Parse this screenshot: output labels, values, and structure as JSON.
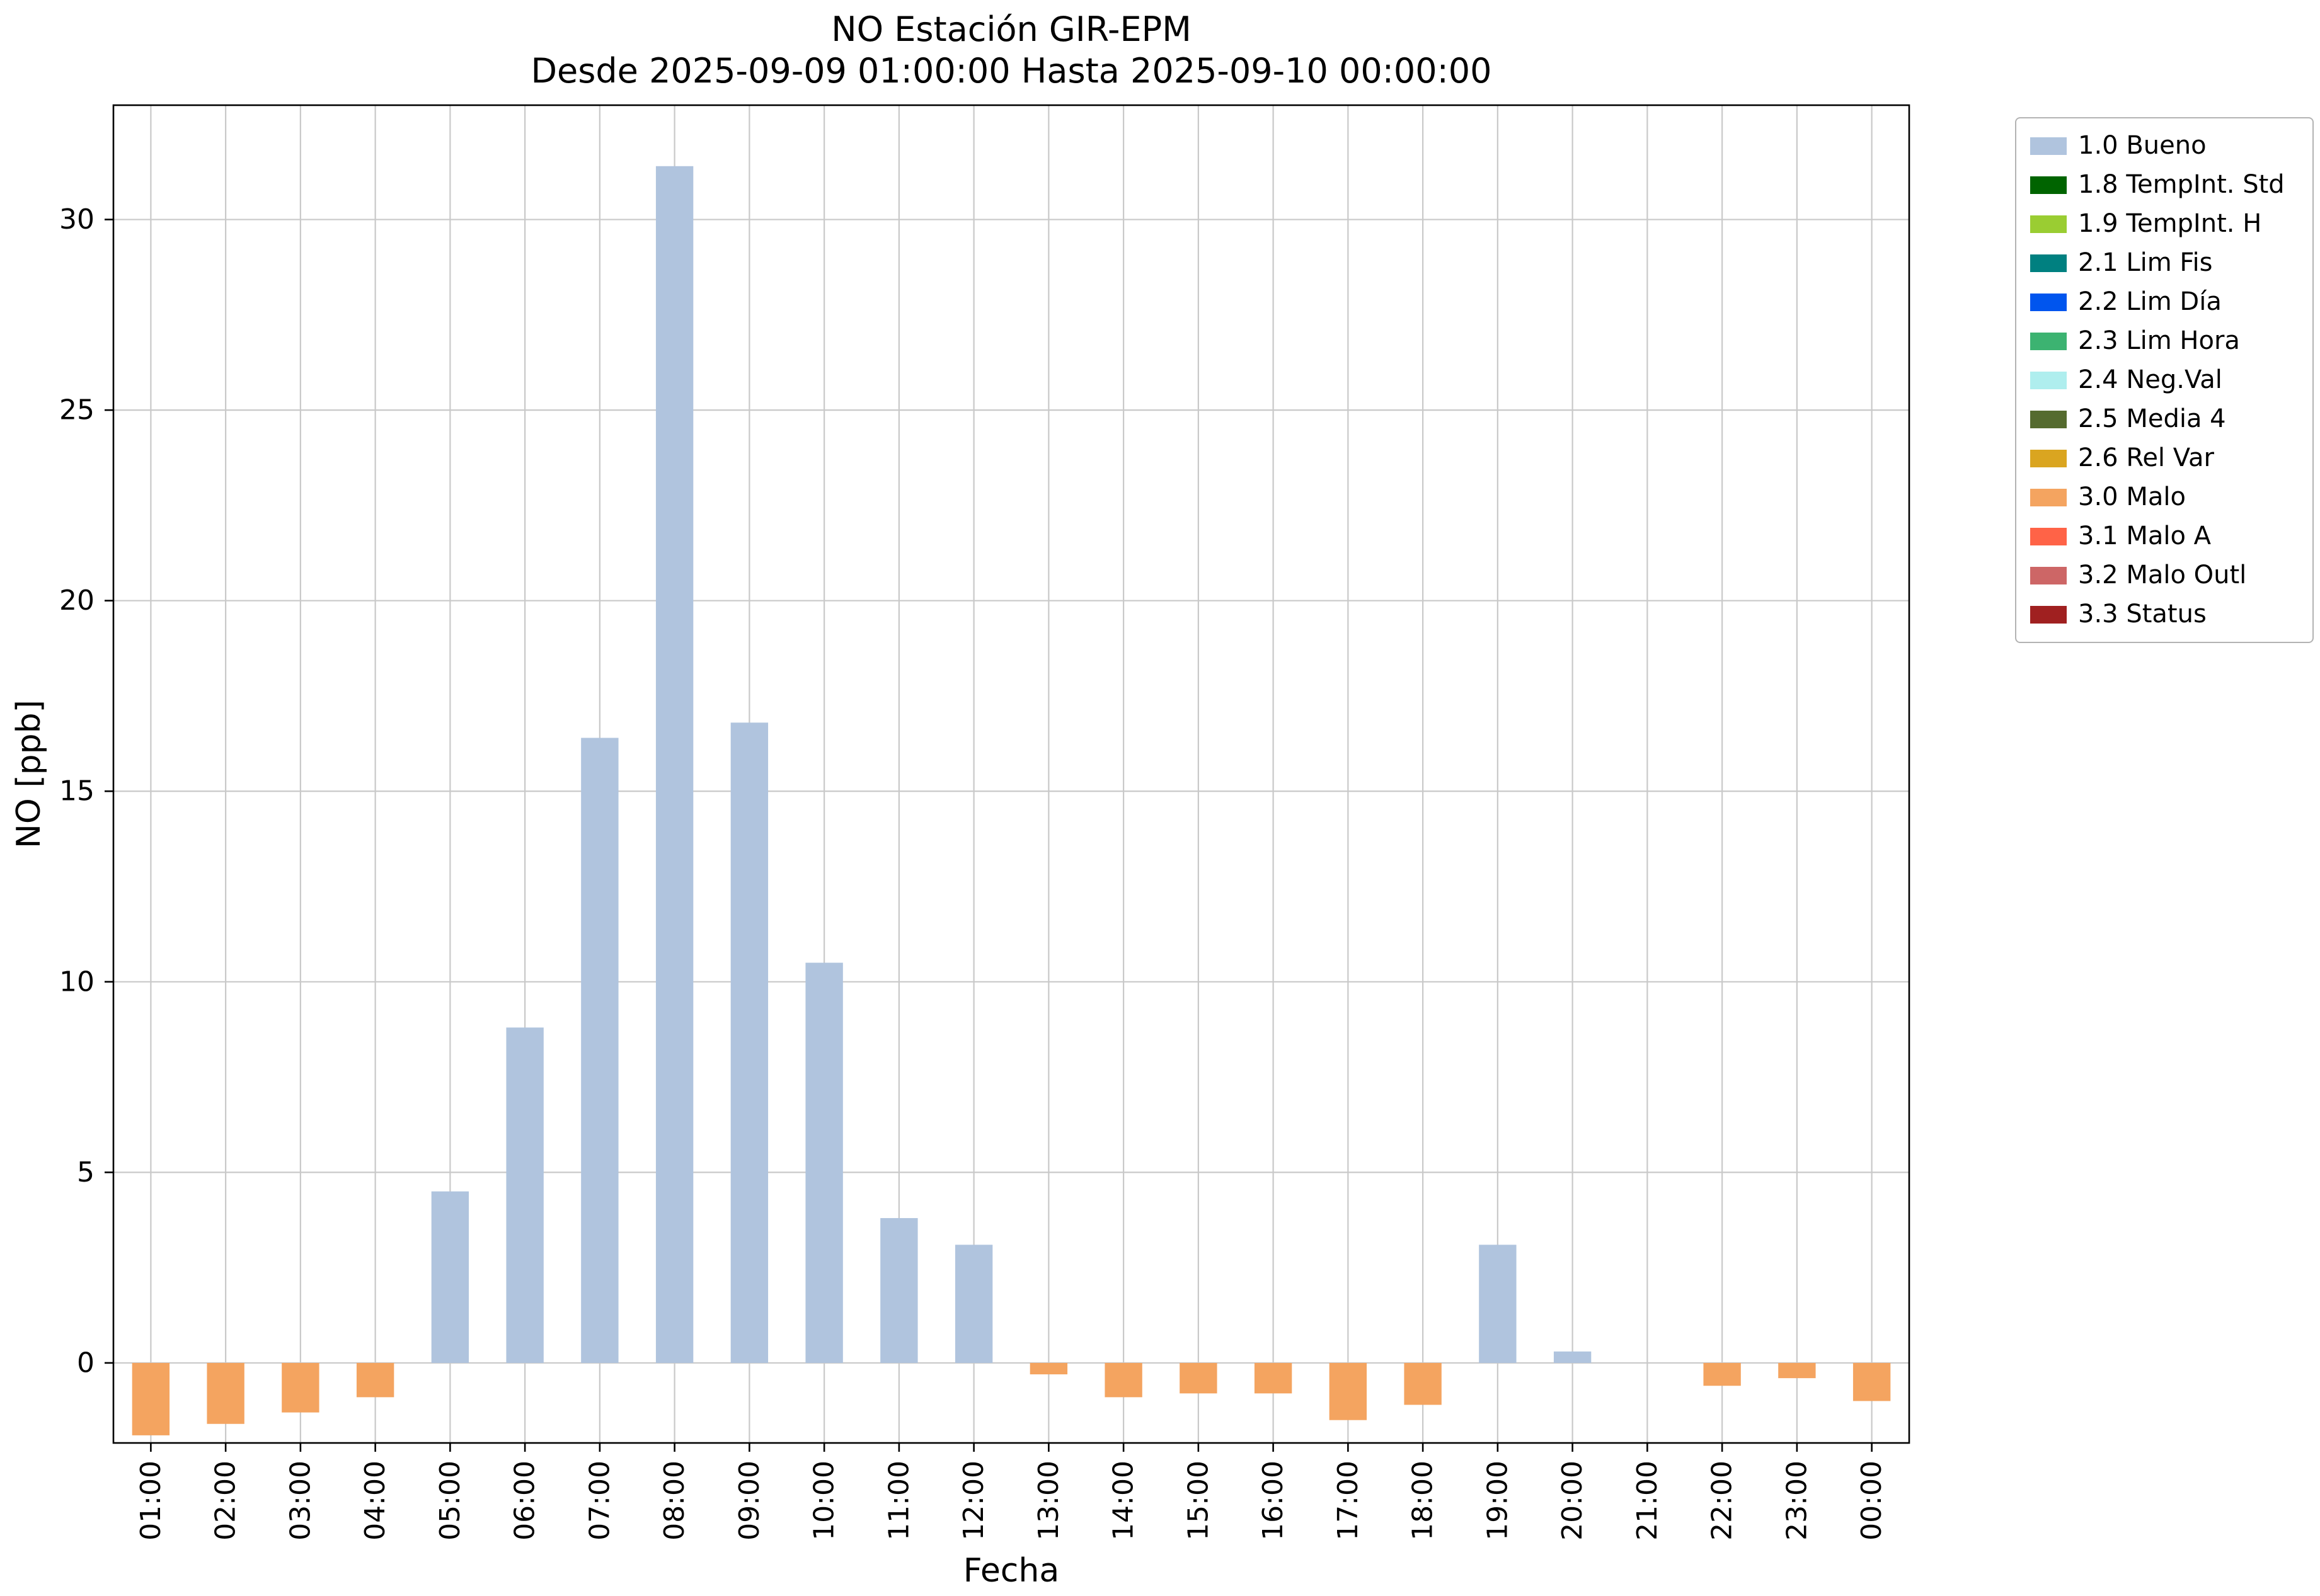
{
  "chart_data": {
    "type": "bar",
    "title": "NO Estación GIR-EPM",
    "subtitle": "Desde 2025-09-09 01:00:00 Hasta 2025-09-10 00:00:00",
    "xlabel": "Fecha",
    "ylabel": "NO [ppb]",
    "categories": [
      "01:00",
      "02:00",
      "03:00",
      "04:00",
      "05:00",
      "06:00",
      "07:00",
      "08:00",
      "09:00",
      "10:00",
      "11:00",
      "12:00",
      "13:00",
      "14:00",
      "15:00",
      "16:00",
      "17:00",
      "18:00",
      "19:00",
      "20:00",
      "21:00",
      "22:00",
      "23:00",
      "00:00"
    ],
    "values": [
      -1.9,
      -1.6,
      -1.3,
      -0.9,
      4.5,
      8.8,
      16.4,
      31.4,
      16.8,
      10.5,
      3.8,
      3.1,
      -0.3,
      -0.9,
      -0.8,
      -0.8,
      -1.5,
      -1.1,
      3.1,
      0.3,
      0,
      -0.6,
      -0.4,
      -1.0
    ],
    "bar_classes": [
      "3.0 Malo",
      "3.0 Malo",
      "3.0 Malo",
      "3.0 Malo",
      "1.0 Bueno",
      "1.0 Bueno",
      "1.0 Bueno",
      "1.0 Bueno",
      "1.0 Bueno",
      "1.0 Bueno",
      "1.0 Bueno",
      "1.0 Bueno",
      "3.0 Malo",
      "3.0 Malo",
      "3.0 Malo",
      "3.0 Malo",
      "3.0 Malo",
      "3.0 Malo",
      "1.0 Bueno",
      "1.0 Bueno",
      "1.0 Bueno",
      "3.0 Malo",
      "3.0 Malo",
      "3.0 Malo"
    ],
    "bar_color_map": {
      "1.0 Bueno": "#b0c4de",
      "3.0 Malo": "#f4a460"
    },
    "ylim": [
      -2.1,
      33.0
    ],
    "yticks": [
      0,
      5,
      10,
      15,
      20,
      25,
      30
    ],
    "grid": "both",
    "legend_position": "outside upper right"
  },
  "legend": {
    "items": [
      {
        "label": "1.0 Bueno",
        "color": "#b0c4de"
      },
      {
        "label": "1.8 TempInt. Std",
        "color": "#006400"
      },
      {
        "label": "1.9 TempInt. H",
        "color": "#9acd32"
      },
      {
        "label": "2.1 Lim Fis",
        "color": "#008080"
      },
      {
        "label": "2.2 Lim Día",
        "color": "#0055ee"
      },
      {
        "label": "2.3 Lim Hora",
        "color": "#3cb371"
      },
      {
        "label": "2.4 Neg.Val",
        "color": "#afeeee"
      },
      {
        "label": "2.5 Media 4",
        "color": "#556b2f"
      },
      {
        "label": "2.6 Rel Var",
        "color": "#daa520"
      },
      {
        "label": "3.0 Malo",
        "color": "#f4a460"
      },
      {
        "label": "3.1 Malo A",
        "color": "#ff6347"
      },
      {
        "label": "3.2 Malo Outl",
        "color": "#cd6666"
      },
      {
        "label": "3.3 Status",
        "color": "#a02020"
      }
    ]
  }
}
